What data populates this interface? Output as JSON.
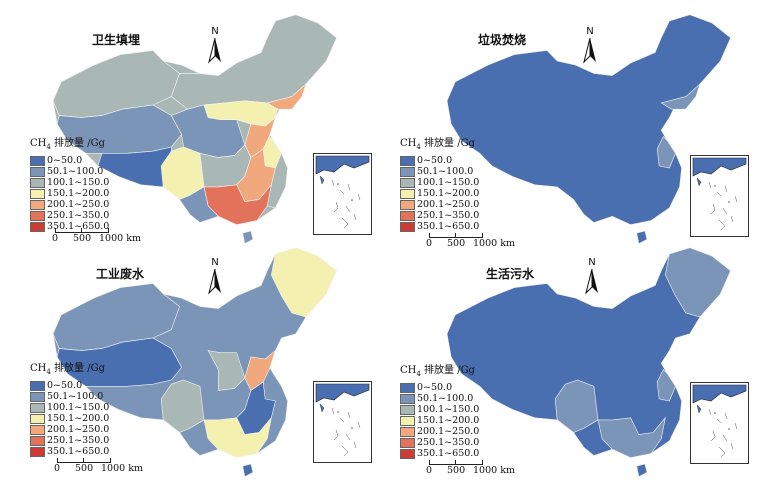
{
  "legend": {
    "title_prefix": "CH",
    "title_sub": "4",
    "title_suffix": " 排放量 /Gg",
    "classes": [
      {
        "label": "0~50.0",
        "color": "#4a6fb0"
      },
      {
        "label": "50.1~100.0",
        "color": "#7b95b8"
      },
      {
        "label": "100.1~150.0",
        "color": "#a9b7b5"
      },
      {
        "label": "150.1~200.0",
        "color": "#f3f0b0"
      },
      {
        "label": "200.1~250.0",
        "color": "#f0a87c"
      },
      {
        "label": "250.1~350.0",
        "color": "#e2725a"
      },
      {
        "label": "350.1~650.0",
        "color": "#cc3b34"
      }
    ]
  },
  "scale": {
    "zero": "0",
    "mid": "500",
    "end": "1000 km"
  },
  "north_label": "N",
  "panels": [
    {
      "title": "卫生填埋",
      "base_class": 2
    },
    {
      "title": "垃圾焚烧",
      "base_class": 0
    },
    {
      "title": "工业废水",
      "base_class": 1
    },
    {
      "title": "生活污水",
      "base_class": 0
    }
  ]
}
